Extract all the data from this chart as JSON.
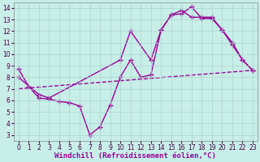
{
  "background_color": "#c8eee8",
  "grid_color": "#aad4cc",
  "line_color": "#990099",
  "marker": "+",
  "markersize": 4,
  "linewidth": 1.0,
  "xlim": [
    -0.5,
    23.5
  ],
  "ylim": [
    2.5,
    14.5
  ],
  "xticks": [
    0,
    1,
    2,
    3,
    4,
    5,
    6,
    7,
    8,
    9,
    10,
    11,
    12,
    13,
    14,
    15,
    16,
    17,
    18,
    19,
    20,
    21,
    22,
    23
  ],
  "yticks": [
    3,
    4,
    5,
    6,
    7,
    8,
    9,
    10,
    11,
    12,
    13,
    14
  ],
  "xlabel": "Windchill (Refroidissement éolien,°C)",
  "xlabel_fontsize": 6.5,
  "tick_fontsize": 5.5,
  "line1_x": [
    0,
    1,
    2,
    3,
    4,
    5,
    6,
    7,
    8,
    9,
    10,
    11,
    12,
    13,
    14,
    15,
    16,
    17,
    18,
    19,
    20,
    21,
    22,
    23
  ],
  "line1_y": [
    8.7,
    7.2,
    6.2,
    6.1,
    5.9,
    5.8,
    5.5,
    3.0,
    3.7,
    5.6,
    8.0,
    9.5,
    8.0,
    8.2,
    12.1,
    13.4,
    13.5,
    14.1,
    13.1,
    13.1,
    12.1,
    10.8,
    9.5,
    8.6
  ],
  "line2_x": [
    0,
    2,
    3,
    10,
    11,
    13,
    14,
    15,
    16,
    17,
    18,
    19,
    20,
    21,
    22,
    23
  ],
  "line2_y": [
    8.0,
    6.5,
    6.2,
    9.5,
    12.0,
    9.5,
    12.1,
    13.4,
    13.8,
    13.2,
    13.2,
    13.2,
    12.1,
    11.0,
    9.5,
    8.6
  ],
  "line3_x": [
    0,
    23
  ],
  "line3_y": [
    7.0,
    8.6
  ],
  "line3_no_marker": true
}
